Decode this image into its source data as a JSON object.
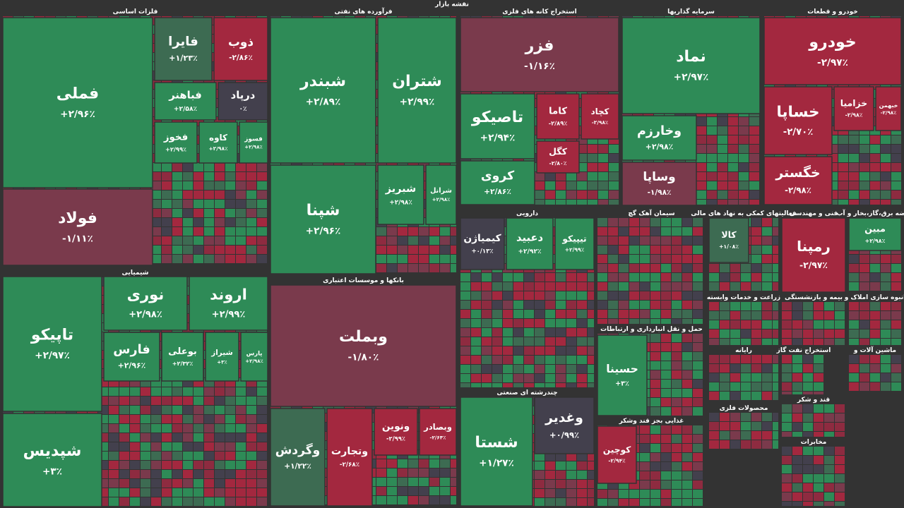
{
  "title": "نقشه بازار",
  "sectors": [
    {
      "name": "فلزات اساسی",
      "tiles": [
        {
          "name": "فملی",
          "change": "+۲/۹۶٪",
          "color": "#2e8b57"
        },
        {
          "name": "فولاد",
          "change": "-۱/۱۱٪",
          "color": "#7a3a4c"
        },
        {
          "name": "فایرا",
          "change": "+۱/۲۳٪",
          "color": "#3d6b52"
        },
        {
          "name": "ذوب",
          "change": "-۲/۸۶٪",
          "color": "#a3283f"
        },
        {
          "name": "فباهنر",
          "change": "+۲/۵۸٪",
          "color": "#2e8b57"
        },
        {
          "name": "درپاد",
          "change": "۰٪",
          "color": "#43404d"
        },
        {
          "name": "فخوز",
          "change": "+۲/۹۹٪",
          "color": "#2e8b57"
        },
        {
          "name": "کاوه",
          "change": "+۲/۹۸٪",
          "color": "#2e8b57"
        },
        {
          "name": "فسوز",
          "change": "+۲/۹۸٪",
          "color": "#2e8b57"
        }
      ]
    },
    {
      "name": "فرآورده های نفتی",
      "tiles": [
        {
          "name": "شبندر",
          "change": "+۲/۸۹٪",
          "color": "#2e8b57"
        },
        {
          "name": "شتران",
          "change": "+۲/۹۹٪",
          "color": "#2e8b57"
        },
        {
          "name": "شپنا",
          "change": "+۲/۹۶٪",
          "color": "#2e8b57"
        },
        {
          "name": "شبریز",
          "change": "+۲/۹۸٪",
          "color": "#2e8b57"
        },
        {
          "name": "شرانل",
          "change": "+۲/۹۸٪",
          "color": "#2e8b57"
        }
      ]
    },
    {
      "name": "استخراج کانه های فلزی",
      "tiles": [
        {
          "name": "فزر",
          "change": "-۱/۱۶٪",
          "color": "#7a3a4c"
        },
        {
          "name": "تاصیکو",
          "change": "+۲/۹۴٪",
          "color": "#2e8b57"
        },
        {
          "name": "کروی",
          "change": "+۲/۸۶٪",
          "color": "#2e8b57"
        },
        {
          "name": "کاما",
          "change": "-۲/۸۹٪",
          "color": "#a3283f"
        },
        {
          "name": "کچاد",
          "change": "-۲/۹۸٪",
          "color": "#a3283f"
        },
        {
          "name": "کگل",
          "change": "-۲/۸۰٪",
          "color": "#a3283f"
        }
      ]
    },
    {
      "name": "سرمایه گذاریها",
      "tiles": [
        {
          "name": "نماد",
          "change": "+۲/۹۷٪",
          "color": "#2e8b57"
        },
        {
          "name": "وخارزم",
          "change": "+۲/۹۸٪",
          "color": "#2e8b57"
        },
        {
          "name": "وساپا",
          "change": "-۱/۹۸٪",
          "color": "#7a3a4c"
        }
      ]
    },
    {
      "name": "خودرو و قطعات",
      "tiles": [
        {
          "name": "خودرو",
          "change": "-۲/۹۷٪",
          "color": "#a3283f"
        },
        {
          "name": "خساپا",
          "change": "-۲/۷۰٪",
          "color": "#a3283f"
        },
        {
          "name": "خگستر",
          "change": "-۲/۹۸٪",
          "color": "#a3283f"
        },
        {
          "name": "خزامیا",
          "change": "-۲/۹۸٪",
          "color": "#a3283f"
        },
        {
          "name": "خبهمن",
          "change": "-۲/۹۸٪",
          "color": "#a3283f"
        }
      ]
    },
    {
      "name": "شیمیایی",
      "tiles": [
        {
          "name": "تاپیکو",
          "change": "+۲/۹۷٪",
          "color": "#2e8b57"
        },
        {
          "name": "شپدیس",
          "change": "+۳٪",
          "color": "#2e8b57"
        },
        {
          "name": "نوری",
          "change": "+۲/۹۸٪",
          "color": "#2e8b57"
        },
        {
          "name": "اروند",
          "change": "+۲/۹۹٪",
          "color": "#2e8b57"
        },
        {
          "name": "فارس",
          "change": "+۲/۹۶٪",
          "color": "#2e8b57"
        },
        {
          "name": "بوعلی",
          "change": "+۲/۳۲٪",
          "color": "#2e8b57"
        },
        {
          "name": "شیراز",
          "change": "+۳٪",
          "color": "#2e8b57"
        },
        {
          "name": "پارس",
          "change": "+۲/۹۸٪",
          "color": "#2e8b57"
        }
      ]
    },
    {
      "name": "بانکها و موسسات اعتباری",
      "tiles": [
        {
          "name": "وبملت",
          "change": "-۱/۸۰٪",
          "color": "#7a3a4c"
        },
        {
          "name": "وگردش",
          "change": "+۱/۲۲٪",
          "color": "#3d6b52"
        },
        {
          "name": "وتجارت",
          "change": "-۲/۶۸٪",
          "color": "#a3283f"
        },
        {
          "name": "ونوین",
          "change": "-۲/۹۹٪",
          "color": "#a3283f"
        },
        {
          "name": "وبصادر",
          "change": "-۲/۶۴٪",
          "color": "#a3283f"
        }
      ]
    },
    {
      "name": "دارویی",
      "tiles": [
        {
          "name": "کیمیاژن",
          "change": "+۰/۱۳٪",
          "color": "#43404d"
        },
        {
          "name": "دعبید",
          "change": "+۲/۹۲٪",
          "color": "#2e8b57"
        },
        {
          "name": "تیپیکو",
          "change": "+۲/۹۹٪",
          "color": "#2e8b57"
        }
      ]
    },
    {
      "name": "چندرشته ای صنعتی",
      "tiles": [
        {
          "name": "شستا",
          "change": "+۱/۲۷٪",
          "color": "#2e8b57"
        },
        {
          "name": "وغدیر",
          "change": "+۰/۹۹٪",
          "color": "#43404d"
        }
      ]
    },
    {
      "name": "سیمان آهک گچ",
      "tiles": []
    },
    {
      "name": "حمل و نقل انبارداری و ارتباطات",
      "tiles": [
        {
          "name": "حسینا",
          "change": "+۳٪",
          "color": "#2e8b57"
        }
      ]
    },
    {
      "name": "غذایی بجز قند وشکر",
      "tiles": [
        {
          "name": "کوچین",
          "change": "-۲/۹۴٪",
          "color": "#a3283f"
        }
      ]
    },
    {
      "name": "فعالیتهای کمکی به نهاد های مالی",
      "tiles": [
        {
          "name": "کالا",
          "change": "+۱/۰۸٪",
          "color": "#3d6b52"
        }
      ]
    },
    {
      "name": "فنی و مهندسی",
      "tiles": [
        {
          "name": "رمپنا",
          "change": "-۲/۹۷٪",
          "color": "#a3283f"
        }
      ]
    },
    {
      "name": "عرضه برق،گاز،بخار و آب",
      "tiles": [
        {
          "name": "مبین",
          "change": "+۲/۹۸٪",
          "color": "#2e8b57"
        }
      ]
    },
    {
      "name": "زراعت و خدمات وابسته",
      "tiles": []
    },
    {
      "name": "بیمه و بازنشستگی",
      "tiles": []
    },
    {
      "name": "انبوه سازی املاک و",
      "tiles": []
    },
    {
      "name": "رایانه",
      "tiles": []
    },
    {
      "name": "استخراج نفت گاز",
      "tiles": []
    },
    {
      "name": "ماشین آلات و",
      "tiles": []
    },
    {
      "name": "محصولات فلزی",
      "tiles": []
    },
    {
      "name": "قند و شکر",
      "tiles": []
    },
    {
      "name": "مخابرات",
      "tiles": []
    }
  ]
}
